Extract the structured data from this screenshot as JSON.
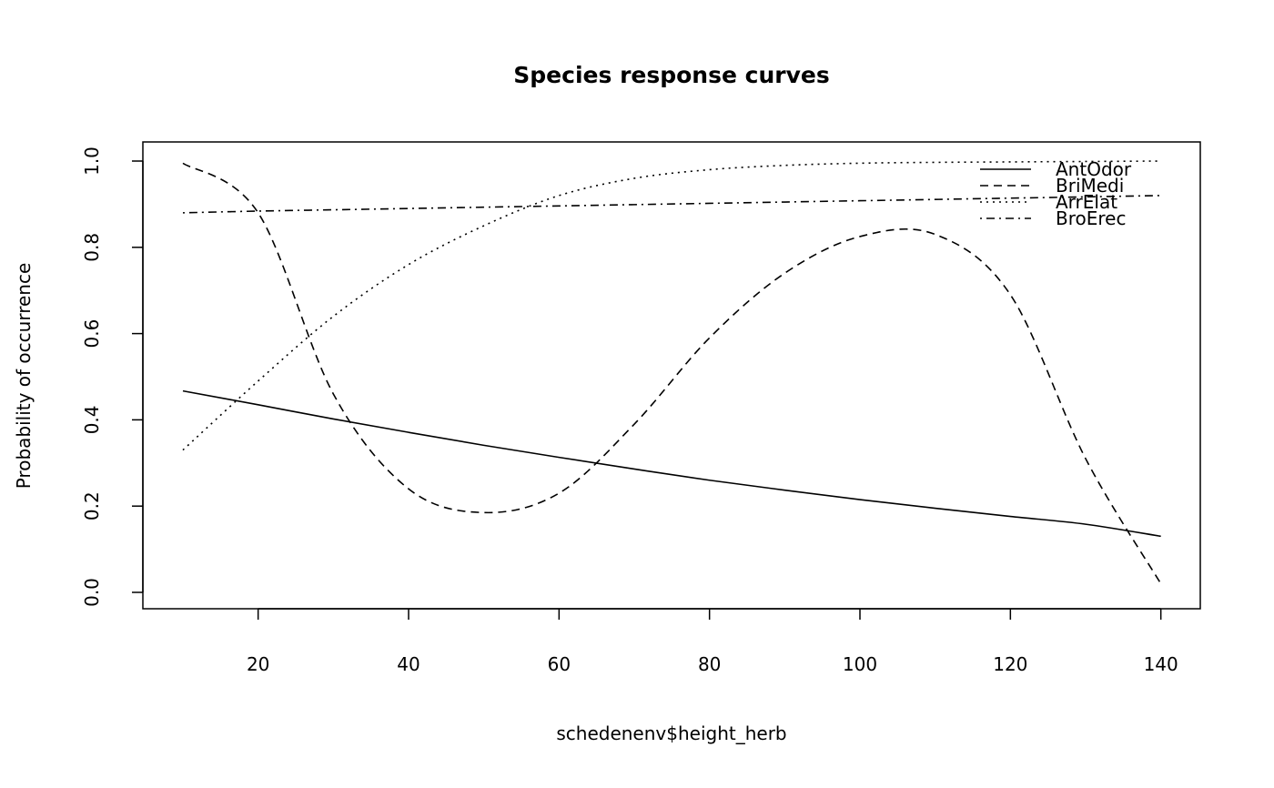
{
  "chart_data": {
    "type": "line",
    "title": "Species response curves",
    "xlabel": "schedenenv$height_herb",
    "ylabel": "Probability of occurrence",
    "xlim": [
      10,
      140
    ],
    "ylim": [
      0,
      1
    ],
    "xticks": [
      "20",
      "40",
      "60",
      "80",
      "100",
      "120",
      "140"
    ],
    "yticks": [
      "0.0",
      "0.2",
      "0.4",
      "0.6",
      "0.8",
      "1.0"
    ],
    "grid": false,
    "legend_position": "top-right",
    "x": [
      10,
      20,
      30,
      40,
      50,
      60,
      70,
      80,
      90,
      100,
      110,
      120,
      130,
      140
    ],
    "series": [
      {
        "name": "AntOdor",
        "line_style": "solid",
        "values": [
          0.467,
          0.435,
          0.402,
          0.371,
          0.341,
          0.313,
          0.286,
          0.26,
          0.237,
          0.215,
          0.195,
          0.176,
          0.158,
          0.13
        ]
      },
      {
        "name": "BriMedi",
        "line_style": "dashed",
        "values": [
          0.995,
          0.88,
          0.46,
          0.24,
          0.185,
          0.23,
          0.39,
          0.59,
          0.74,
          0.825,
          0.83,
          0.69,
          0.31,
          0.02
        ]
      },
      {
        "name": "ArrElat",
        "line_style": "dotted",
        "values": [
          0.33,
          0.49,
          0.64,
          0.76,
          0.85,
          0.92,
          0.96,
          0.98,
          0.99,
          0.995,
          0.997,
          0.998,
          0.999,
          1.0
        ]
      },
      {
        "name": "BroErec",
        "line_style": "dotdash",
        "values": [
          0.88,
          0.884,
          0.887,
          0.89,
          0.893,
          0.896,
          0.899,
          0.902,
          0.905,
          0.908,
          0.911,
          0.914,
          0.917,
          0.92
        ]
      }
    ]
  }
}
